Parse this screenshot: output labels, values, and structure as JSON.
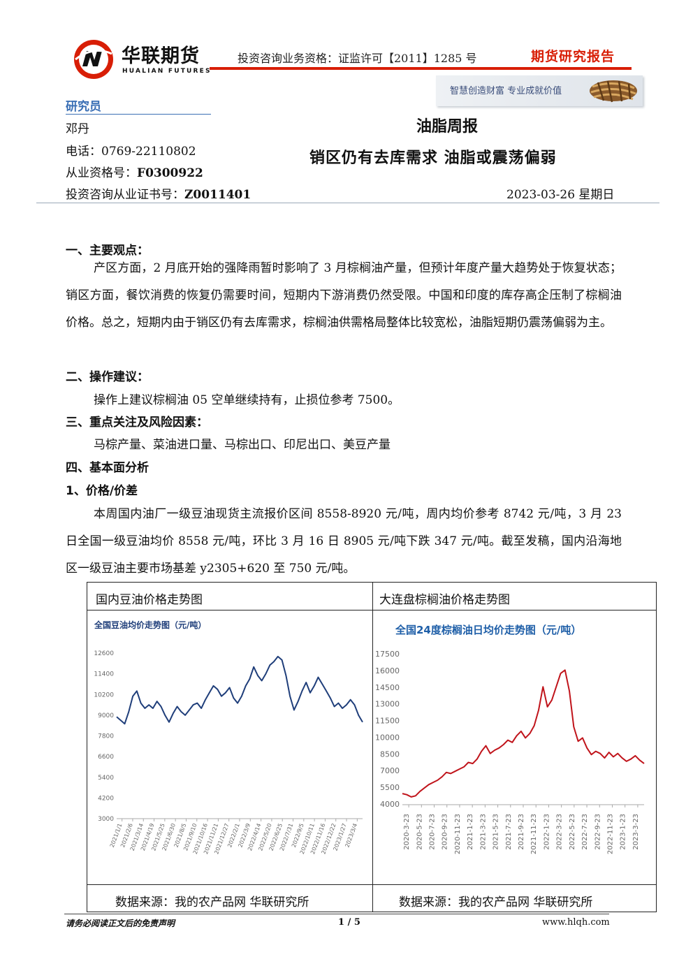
{
  "header": {
    "brand_cn": "华联期货",
    "brand_en": "HUALIAN FUTURES",
    "qualification": "投资咨询业务资格：证监许可【2011】1285 号",
    "report_type": "期货研究报告",
    "slogan": "智慧创造财富  专业成就价值",
    "accent_color": "#d81e06",
    "logo_color": "#d81e06"
  },
  "researcher": {
    "section_title": "研究员",
    "name": "邓丹",
    "phone_label": "电话：",
    "phone": "0769-22110802",
    "license_label": "从业资格号：",
    "license": "F0300922",
    "advisory_label": "投资咨询从业证书号：",
    "advisory": "Z0011401"
  },
  "report": {
    "title": "油脂周报",
    "subtitle": "销区仍有去库需求 油脂或震荡偏弱",
    "date": "2023-03-26 星期日"
  },
  "sections": {
    "s1_title": "一、主要观点：",
    "s1_body": "产区方面，2 月底开始的强降雨暂时影响了 3 月棕榈油产量，但预计年度产量大趋势处于恢复状态；销区方面，餐饮消费的恢复仍需要时间，短期内下游消费仍然受限。中国和印度的库存高企压制了棕榈油价格。总之，短期内由于销区仍有去库需求，棕榈油供需格局整体比较宽松，油脂短期仍震荡偏弱为主。",
    "s2_title": "二、操作建议：",
    "s2_body": "操作上建议棕榈油 05 空单继续持有，止损位参考 7500。",
    "s3_title": "三、重点关注及风险因素：",
    "s3_body": "马棕产量、菜油进口量、马棕出口、印尼出口、美豆产量",
    "s4_title": "四、基本面分析",
    "s4_sub": "1、价格/价差",
    "s4_body": "本周国内油厂一级豆油现货主流报价区间 8558-8920 元/吨，周内均价参考 8742 元/吨，3 月 23 日全国一级豆油均价 8558 元/吨，环比 3 月 16 日 8905 元/吨下跌 347 元/吨。截至发稿，国内沿海地区一级豆油主要市场基差 y2305+620 至 750 元/吨。"
  },
  "table": {
    "left_caption": "国内豆油价格走势图",
    "right_caption": "大连盘棕榈油价格走势图",
    "left_source": "数据来源：我的农产品网  华联研究所",
    "right_source": "数据来源：我的农产品网  华联研究所"
  },
  "chart_data": [
    {
      "type": "line",
      "title": "全国豆油均价走势图（元/吨）",
      "line_color": "#1f3e7a",
      "ylim": [
        3000,
        12600
      ],
      "yticks": [
        "12600",
        "11400",
        "10200",
        "9000",
        "7800",
        "6600",
        "5400",
        "4200",
        "3000"
      ],
      "xtick_labels": [
        "2021/1/1",
        "2021/2/6",
        "2021/3/14",
        "2021/4/19",
        "2021/5/25",
        "2021/6/30",
        "2021/8/5",
        "2021/9/10",
        "2021/10/16",
        "2021/11/21",
        "2021/12/27",
        "2022/2/1",
        "2022/3/9",
        "2022/4/14",
        "2022/5/20",
        "2022/6/25",
        "2022/7/31",
        "2022/9/5",
        "2022/10/11",
        "2022/11/16",
        "2022/12/22",
        "2023/1/27",
        "2023/3/4"
      ],
      "series": [
        {
          "values": [
            8900,
            8700,
            8500,
            9200,
            10100,
            10400,
            9700,
            9400,
            9600,
            9400,
            9800,
            9500,
            9000,
            8600,
            9100,
            9500,
            9200,
            9000,
            9300,
            9600,
            9700,
            9400,
            9900,
            10300,
            10700,
            10500,
            10100,
            10300,
            10600,
            10000,
            9700,
            10100,
            10700,
            11100,
            11800,
            11300,
            11000,
            11400,
            11900,
            12100,
            12400,
            12200,
            11300,
            10100,
            9300,
            9800,
            10400,
            10900,
            10300,
            10700,
            11200,
            10800,
            10400,
            10000,
            9500,
            9700,
            9400,
            9600,
            9900,
            9600,
            9000,
            8600
          ]
        }
      ]
    },
    {
      "type": "line",
      "title": "全国24度棕榈油日均价走势图（元/吨）",
      "line_color": "#c0141b",
      "ylim": [
        4000,
        17500
      ],
      "yticks": [
        "17500",
        "16000",
        "14500",
        "13000",
        "11500",
        "10000",
        "8500",
        "7000",
        "5500",
        "4000"
      ],
      "xtick_labels": [
        "2020-3-23",
        "2020-5-23",
        "2020-7-23",
        "2020-9-23",
        "2020-11-23",
        "2021-1-23",
        "2021-3-23",
        "2021-5-23",
        "2021-7-23",
        "2021-9-23",
        "2021-11-23",
        "2022-1-23",
        "2022-3-23",
        "2022-5-23",
        "2022-7-23",
        "2022-9-23",
        "2022-11-23",
        "2023-1-23",
        "2023-3-23"
      ],
      "series": [
        {
          "values": [
            5000,
            4900,
            4700,
            4800,
            5200,
            5500,
            5800,
            6000,
            6200,
            6500,
            6900,
            6800,
            7000,
            7200,
            7400,
            7800,
            7700,
            8100,
            8800,
            9300,
            8600,
            8900,
            9100,
            9400,
            9800,
            9600,
            10200,
            10600,
            10000,
            10400,
            11100,
            12500,
            14600,
            12800,
            13400,
            14600,
            15800,
            16100,
            14200,
            11000,
            9700,
            10000,
            9100,
            8500,
            8800,
            8600,
            8200,
            8700,
            8300,
            8600,
            8200,
            7900,
            8100,
            8400,
            8000,
            7700
          ]
        }
      ]
    }
  ],
  "footer": {
    "disclaimer": "请务必阅读正文后的免责声明",
    "page": "1 / 5",
    "url": "www.hlqh.com"
  }
}
